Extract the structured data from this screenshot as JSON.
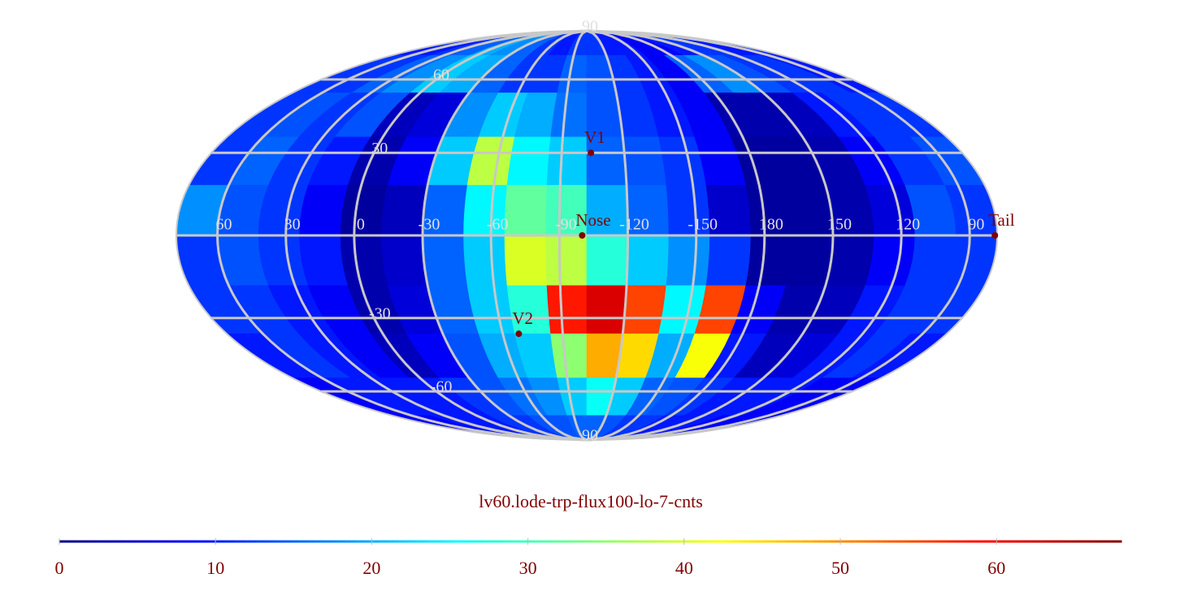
{
  "chart_data": {
    "type": "heatmap",
    "projection": "mollweide",
    "title": "lv60.lode-trp-flux100-lo-7-cnts",
    "xlim": [
      78,
      -282
    ],
    "ylim": [
      -90,
      90
    ],
    "xticks": [
      60,
      30,
      0,
      -30,
      -60,
      -90,
      -120,
      -150,
      {
        "value": -180,
        "label": "180"
      },
      {
        "value": -210,
        "label": "150"
      },
      {
        "value": -240,
        "label": "120"
      },
      {
        "value": -270,
        "label": "90"
      }
    ],
    "yticks": [
      {
        "value": 90,
        "label": "90"
      },
      60,
      30,
      -30,
      -60,
      {
        "value": -90,
        "label": "90"
      }
    ],
    "grid": true,
    "grid_color": "#c8c8c8",
    "colormap": "jet",
    "clim": [
      0,
      68
    ],
    "cticks": [
      0,
      10,
      20,
      30,
      40,
      50,
      60
    ],
    "values": [
      [
        10,
        10,
        12,
        15,
        20,
        18,
        15,
        12,
        10,
        12,
        12,
        10,
        10,
        8,
        8,
        10,
        12,
        12,
        10,
        10
      ],
      [
        12,
        12,
        15,
        18,
        22,
        20,
        15,
        12,
        12,
        15,
        14,
        12,
        10,
        8,
        15,
        18,
        14,
        12,
        12,
        10
      ],
      [
        12,
        14,
        12,
        14,
        4,
        6,
        18,
        22,
        20,
        16,
        14,
        12,
        10,
        8,
        3,
        3,
        4,
        10,
        12,
        12
      ],
      [
        12,
        15,
        12,
        10,
        3,
        8,
        22,
        38,
        25,
        22,
        15,
        14,
        12,
        8,
        2,
        2,
        3,
        8,
        12,
        14
      ],
      [
        18,
        14,
        12,
        8,
        2,
        4,
        15,
        25,
        32,
        30,
        20,
        15,
        12,
        5,
        2,
        2,
        3,
        6,
        14,
        12
      ],
      [
        12,
        14,
        12,
        10,
        3,
        5,
        15,
        22,
        40,
        38,
        28,
        22,
        18,
        12,
        2,
        2,
        3,
        8,
        12,
        12
      ],
      [
        12,
        12,
        10,
        8,
        3,
        6,
        15,
        22,
        28,
        58,
        62,
        55,
        25,
        55,
        8,
        3,
        4,
        10,
        12,
        12
      ],
      [
        10,
        12,
        10,
        8,
        4,
        8,
        14,
        20,
        22,
        35,
        48,
        45,
        20,
        42,
        10,
        4,
        6,
        10,
        12,
        10
      ],
      [
        8,
        10,
        10,
        10,
        10,
        12,
        14,
        16,
        18,
        22,
        26,
        22,
        15,
        14,
        12,
        10,
        10,
        10,
        8,
        8
      ],
      [
        8,
        8,
        10,
        10,
        10,
        12,
        12,
        14,
        14,
        15,
        15,
        14,
        12,
        12,
        10,
        10,
        10,
        8,
        8,
        8
      ]
    ],
    "points": [
      {
        "name": "V1",
        "x": -104,
        "y": 30
      },
      {
        "name": "Nose",
        "x": -100,
        "y": 0
      },
      {
        "name": "V2",
        "x": -68,
        "y": -36
      },
      {
        "name": "Tail",
        "x": -281,
        "y": 0
      }
    ],
    "point_color": "#800000"
  }
}
